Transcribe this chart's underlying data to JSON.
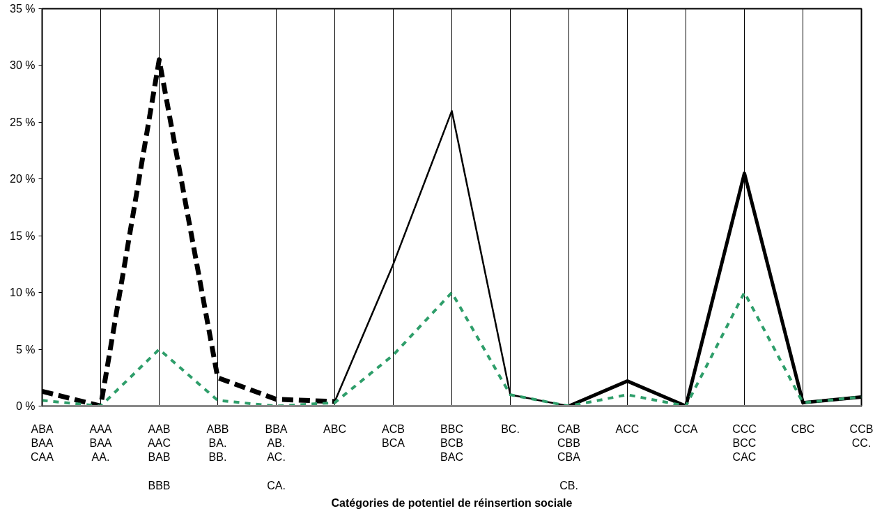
{
  "chart_data": {
    "type": "line",
    "xlabel": "Catégories de potentiel de réinsertion sociale",
    "categories": [
      "ABA\nBAA\nCAA",
      "AAA\nBAA\nAA.",
      "AAB\nAAC\nBAB\n\nBBB",
      "ABB\nBA.\nBB.",
      "BBA\nAB.\nAC.\n\nCA.",
      "ABC",
      "ACB\nBCA",
      "BBC\nBCB\nBAC",
      "BC.",
      "CAB\nCBB\nCBA\n\nCB.",
      "ACC",
      "CCA",
      "CCC\nBCC\nCAC",
      "CBC",
      "CCB\nCC."
    ],
    "series": [
      {
        "color": "#000000",
        "line_style": "dashed",
        "values": [
          1.3,
          0,
          30.5,
          2.5,
          0.6,
          0.4,
          null,
          null,
          null,
          null,
          null,
          null,
          null,
          null,
          null
        ]
      },
      {
        "color": "#000000",
        "line_style": "solid",
        "values": [
          null,
          null,
          null,
          null,
          null,
          0.4,
          12.5,
          26,
          1,
          0,
          null,
          null,
          null,
          null,
          null
        ]
      },
      {
        "color": "#000000",
        "line_style": "solid",
        "values": [
          null,
          null,
          null,
          null,
          null,
          null,
          null,
          null,
          null,
          0,
          2.2,
          0,
          20.5,
          0.3,
          0.8
        ]
      },
      {
        "color": "#2e9e6a",
        "line_style": "dotted",
        "values": [
          0.5,
          0,
          5,
          0.5,
          0,
          0.3,
          4.5,
          10,
          1,
          0,
          1,
          0,
          10,
          0.3,
          0.8
        ]
      }
    ],
    "ylim": [
      0,
      35
    ],
    "yticks": [
      {
        "value": 0,
        "label": "0 %"
      },
      {
        "value": 5,
        "label": "5 %"
      },
      {
        "value": 10,
        "label": "10 %"
      },
      {
        "value": 15,
        "label": "15 %"
      },
      {
        "value": 20,
        "label": "20 %"
      },
      {
        "value": 25,
        "label": "25 %"
      },
      {
        "value": 30,
        "label": "30 %"
      },
      {
        "value": 35,
        "label": "35 %"
      }
    ],
    "grid": "x"
  }
}
